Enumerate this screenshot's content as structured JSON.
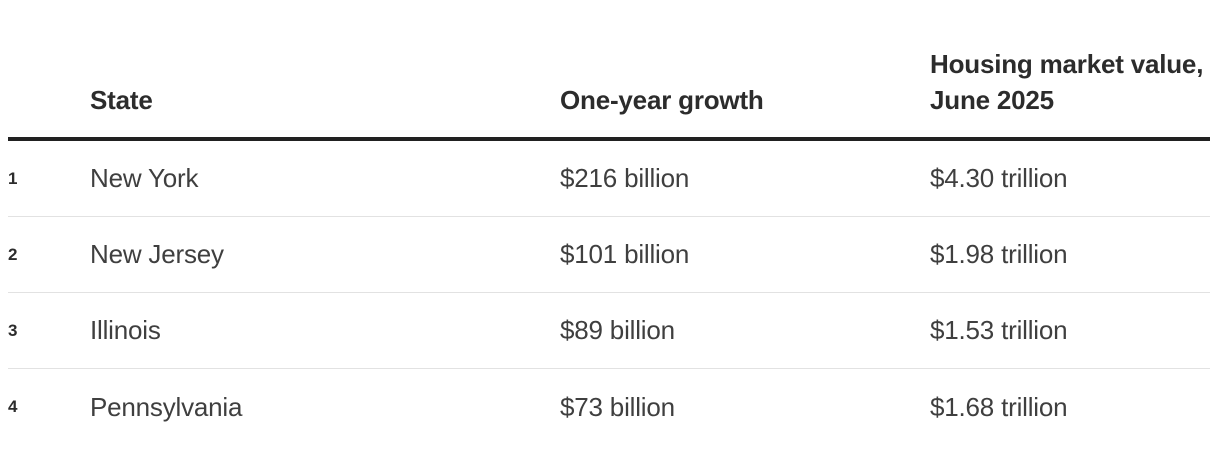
{
  "chart_data": {
    "type": "table",
    "title": "",
    "columns": [
      "",
      "State",
      "One-year growth",
      "Housing market value, June 2025"
    ],
    "rows": [
      [
        "1",
        "New York",
        "$216 billion",
        "$4.30 trillion"
      ],
      [
        "2",
        "New Jersey",
        "$101 billion",
        "$1.98 trillion"
      ],
      [
        "3",
        "Illinois",
        "$89 billion",
        "$1.53 trillion"
      ],
      [
        "4",
        "Pennsylvania",
        "$73 billion",
        "$1.68 trillion"
      ]
    ],
    "layout_hints": {
      "header_rule": "thick bottom border under header row",
      "row_dividers": "thin light gray lines between rows",
      "value_header_wraps_two_lines": true
    }
  },
  "colors": {
    "background": "#ffffff",
    "header_text": "#2c2c2c",
    "body_text": "#3f3f3f",
    "heavy_rule": "#212121",
    "row_divider": "#e2e2e2"
  }
}
